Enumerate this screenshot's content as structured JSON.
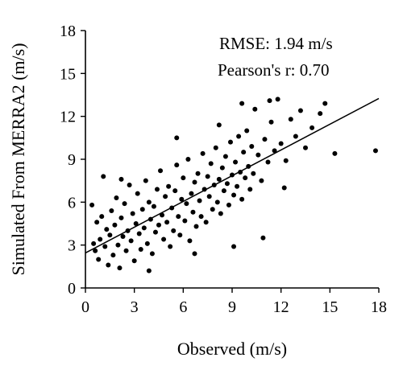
{
  "chart_data": {
    "type": "scatter",
    "title": "",
    "xlabel": "Observed (m/s)",
    "ylabel": "Simulated From MERRA2 (m/s)",
    "xlim": [
      0,
      18
    ],
    "ylim": [
      0,
      18
    ],
    "xticks": [
      "0",
      "3",
      "6",
      "9",
      "12",
      "15",
      "18"
    ],
    "yticks": [
      "0",
      "3",
      "6",
      "9",
      "12",
      "15",
      "18"
    ],
    "grid": false,
    "annotations": [
      "RMSE: 1.94 m/s",
      "Pearson's r: 0.70"
    ],
    "regression_line": {
      "x": [
        0,
        18
      ],
      "y": [
        2.45,
        13.25
      ]
    },
    "point_color": "#000000",
    "points": [
      [
        0.4,
        5.8
      ],
      [
        0.5,
        3.1
      ],
      [
        0.6,
        2.6
      ],
      [
        0.7,
        4.6
      ],
      [
        0.8,
        2.0
      ],
      [
        0.9,
        3.4
      ],
      [
        1.0,
        5.0
      ],
      [
        1.1,
        7.8
      ],
      [
        1.2,
        2.9
      ],
      [
        1.3,
        4.1
      ],
      [
        1.4,
        1.6
      ],
      [
        1.5,
        3.7
      ],
      [
        1.6,
        5.4
      ],
      [
        1.7,
        2.3
      ],
      [
        1.8,
        4.4
      ],
      [
        1.9,
        6.3
      ],
      [
        2.0,
        3.0
      ],
      [
        2.1,
        1.4
      ],
      [
        2.2,
        4.9
      ],
      [
        2.3,
        3.6
      ],
      [
        2.4,
        5.9
      ],
      [
        2.5,
        2.6
      ],
      [
        2.6,
        4.0
      ],
      [
        2.7,
        7.2
      ],
      [
        2.8,
        3.3
      ],
      [
        2.9,
        5.2
      ],
      [
        3.0,
        1.9
      ],
      [
        3.1,
        4.5
      ],
      [
        3.2,
        6.6
      ],
      [
        3.3,
        3.8
      ],
      [
        3.4,
        2.7
      ],
      [
        3.5,
        5.5
      ],
      [
        3.6,
        4.2
      ],
      [
        3.7,
        7.5
      ],
      [
        3.8,
        3.1
      ],
      [
        3.9,
        6.0
      ],
      [
        4.0,
        4.8
      ],
      [
        4.1,
        2.4
      ],
      [
        4.2,
        5.7
      ],
      [
        4.3,
        3.9
      ],
      [
        4.4,
        6.9
      ],
      [
        4.5,
        4.4
      ],
      [
        4.6,
        8.2
      ],
      [
        4.7,
        5.1
      ],
      [
        4.8,
        3.4
      ],
      [
        4.9,
        6.4
      ],
      [
        5.0,
        4.6
      ],
      [
        5.1,
        7.1
      ],
      [
        5.2,
        2.9
      ],
      [
        5.3,
        5.6
      ],
      [
        5.4,
        4.0
      ],
      [
        5.5,
        6.8
      ],
      [
        5.6,
        8.6
      ],
      [
        5.7,
        5.0
      ],
      [
        5.8,
        3.7
      ],
      [
        5.9,
        6.2
      ],
      [
        6.0,
        7.7
      ],
      [
        6.1,
        4.7
      ],
      [
        6.2,
        5.9
      ],
      [
        6.3,
        9.0
      ],
      [
        6.4,
        3.3
      ],
      [
        6.5,
        6.6
      ],
      [
        6.6,
        5.3
      ],
      [
        6.7,
        7.4
      ],
      [
        6.8,
        4.3
      ],
      [
        6.9,
        8.0
      ],
      [
        7.0,
        6.1
      ],
      [
        7.1,
        5.0
      ],
      [
        7.2,
        9.4
      ],
      [
        7.3,
        6.9
      ],
      [
        7.4,
        4.6
      ],
      [
        7.5,
        7.8
      ],
      [
        7.6,
        6.4
      ],
      [
        7.7,
        8.7
      ],
      [
        7.8,
        5.5
      ],
      [
        7.9,
        7.2
      ],
      [
        8.0,
        9.8
      ],
      [
        8.1,
        6.0
      ],
      [
        8.2,
        7.6
      ],
      [
        8.3,
        5.2
      ],
      [
        8.4,
        8.4
      ],
      [
        8.5,
        6.8
      ],
      [
        8.6,
        9.2
      ],
      [
        8.7,
        7.3
      ],
      [
        8.8,
        5.8
      ],
      [
        8.9,
        10.2
      ],
      [
        9.0,
        7.9
      ],
      [
        9.1,
        6.5
      ],
      [
        9.2,
        8.8
      ],
      [
        9.3,
        7.1
      ],
      [
        9.4,
        10.6
      ],
      [
        9.5,
        8.1
      ],
      [
        9.6,
        6.2
      ],
      [
        9.7,
        9.5
      ],
      [
        9.8,
        7.7
      ],
      [
        9.9,
        11.0
      ],
      [
        10.0,
        8.5
      ],
      [
        10.1,
        6.9
      ],
      [
        10.2,
        9.9
      ],
      [
        10.3,
        8.0
      ],
      [
        10.4,
        12.5
      ],
      [
        10.6,
        9.3
      ],
      [
        10.8,
        7.5
      ],
      [
        11.0,
        10.4
      ],
      [
        11.2,
        8.8
      ],
      [
        11.4,
        11.6
      ],
      [
        11.6,
        9.6
      ],
      [
        11.8,
        13.2
      ],
      [
        12.0,
        10.1
      ],
      [
        12.3,
        8.9
      ],
      [
        12.6,
        11.8
      ],
      [
        12.9,
        10.6
      ],
      [
        13.2,
        12.4
      ],
      [
        13.5,
        9.8
      ],
      [
        13.9,
        11.2
      ],
      [
        14.4,
        12.2
      ],
      [
        14.7,
        12.9
      ],
      [
        15.3,
        9.4
      ],
      [
        17.8,
        9.6
      ],
      [
        10.9,
        3.5
      ],
      [
        9.1,
        2.9
      ],
      [
        6.7,
        2.4
      ],
      [
        3.9,
        1.2
      ],
      [
        11.3,
        13.1
      ],
      [
        9.6,
        12.9
      ],
      [
        12.2,
        7.0
      ],
      [
        2.2,
        7.6
      ],
      [
        5.6,
        10.5
      ],
      [
        8.2,
        11.4
      ]
    ]
  }
}
